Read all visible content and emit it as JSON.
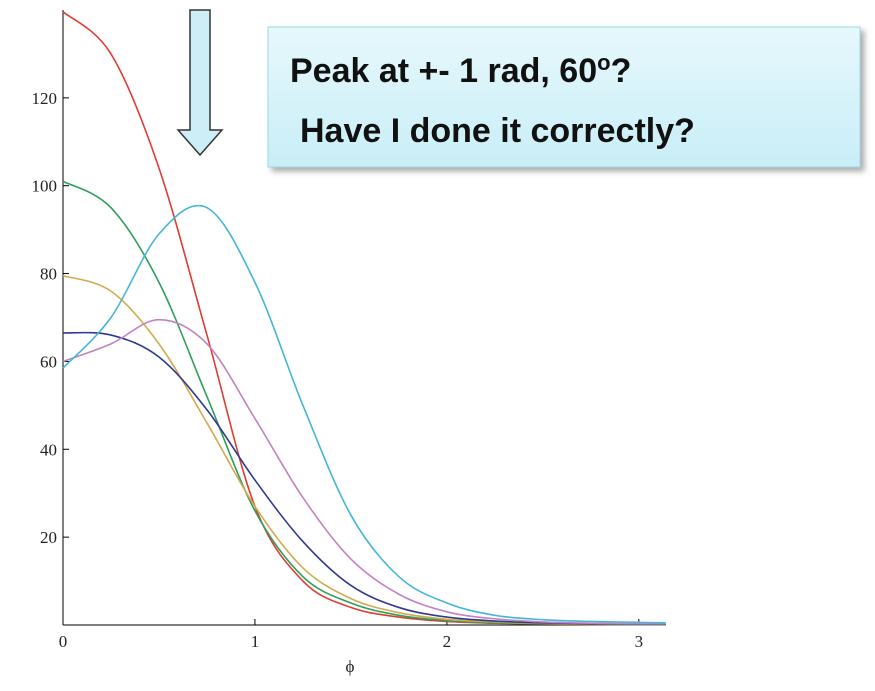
{
  "chart_data": {
    "type": "line",
    "xlabel": "ϕ",
    "annotation": {
      "line1": "Peak at +- 1 rad, 60",
      "line1_sup": "o",
      "line1_end": "?",
      "line2": "Have I done it correctly?"
    },
    "x": [
      0,
      0.25,
      0.5,
      0.75,
      1,
      1.25,
      1.5,
      1.75,
      2,
      2.25,
      2.5,
      2.75,
      3,
      3.14
    ],
    "series": [
      {
        "name": "red",
        "color": "#e03c31",
        "values": [
          139.6,
          130,
          104,
          66,
          27,
          10,
          4,
          1.8,
          0.8,
          0.4,
          0.2,
          0.1,
          0.1,
          0.1
        ]
      },
      {
        "name": "green",
        "color": "#2ca05a",
        "values": [
          101,
          95,
          78,
          52,
          26,
          11,
          5,
          2.2,
          1,
          0.5,
          0.3,
          0.2,
          0.1,
          0.1
        ]
      },
      {
        "name": "yellow",
        "color": "#d4a94e",
        "values": [
          79.5,
          76,
          64,
          46,
          27,
          13,
          6,
          2.8,
          1.3,
          0.7,
          0.4,
          0.3,
          0.2,
          0.2
        ]
      },
      {
        "name": "navy",
        "color": "#2f3a8f",
        "values": [
          66.5,
          66,
          61,
          49,
          33,
          19,
          9,
          4,
          1.8,
          0.9,
          0.5,
          0.3,
          0.2,
          0.2
        ]
      },
      {
        "name": "purple",
        "color": "#c382c0",
        "values": [
          60,
          64,
          69.5,
          64,
          47,
          29,
          15,
          7,
          3,
          1.4,
          0.7,
          0.4,
          0.3,
          0.3
        ]
      },
      {
        "name": "cyan",
        "color": "#45b5d8",
        "values": [
          58.5,
          70,
          89,
          95,
          78,
          50,
          25,
          11,
          5,
          2.2,
          1.2,
          0.8,
          0.6,
          0.5
        ]
      }
    ],
    "xlim": [
      0,
      3.1416
    ],
    "ylim": [
      0,
      140
    ],
    "xticks": [
      0,
      1,
      2,
      3
    ],
    "yticks": [
      20,
      40,
      60,
      80,
      100,
      120
    ]
  }
}
